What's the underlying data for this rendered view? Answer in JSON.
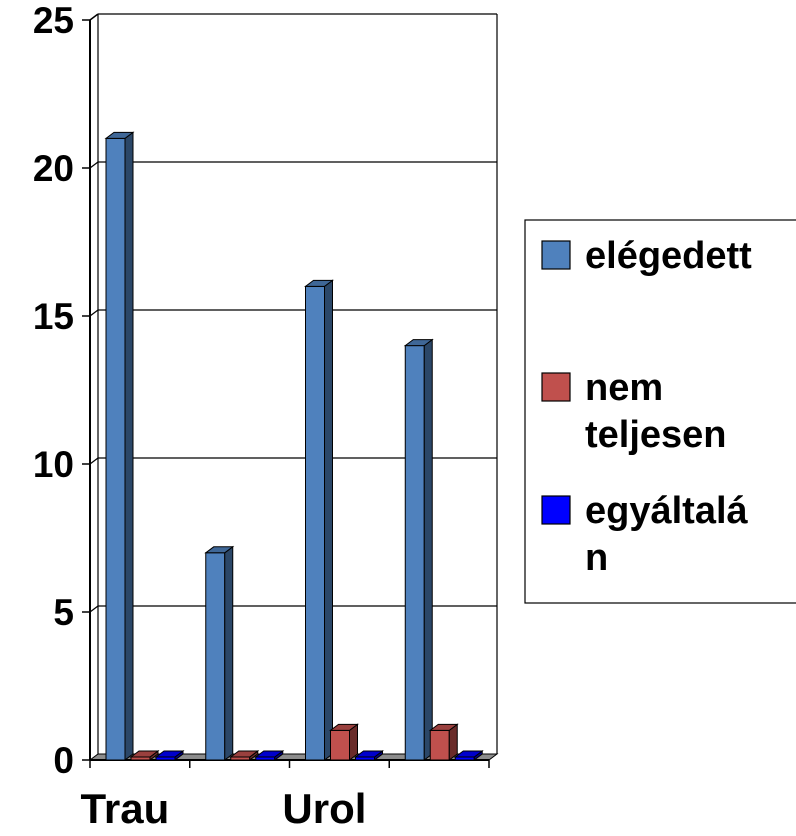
{
  "chart_data": {
    "type": "bar",
    "title": "",
    "xlabel": "",
    "ylabel": "",
    "ylim": [
      0,
      25
    ],
    "yticks": [
      0,
      5,
      10,
      15,
      20,
      25
    ],
    "grid": true,
    "style": "3d-clustered",
    "legend_position": "right",
    "category_labels": [
      "Trau",
      "",
      "Urol",
      ""
    ],
    "series": [
      {
        "name": "elégedett",
        "values": [
          21,
          7,
          16,
          14
        ],
        "color": "#4f81bd"
      },
      {
        "name": "nem teljesen",
        "values": [
          0,
          0,
          1,
          1
        ],
        "color": "#c0504d"
      },
      {
        "name": "egyáltalán",
        "values": [
          0,
          0,
          0,
          0
        ],
        "color": "#0000ff"
      }
    ],
    "legend_lines": [
      [
        "elégedett"
      ],
      [
        "nem",
        "teljesen"
      ],
      [
        "egyáltalá",
        "n"
      ]
    ]
  }
}
